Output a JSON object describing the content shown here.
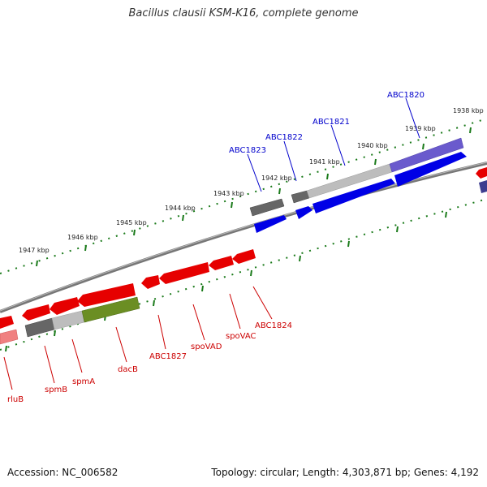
{
  "title": "Bacillus clausii KSM-K16, complete genome",
  "footer": {
    "accession": "Accession: NC_006582",
    "summary": "Topology: circular; Length: 4,303,871 bp; Genes: 4,192"
  },
  "colors": {
    "forward_gene": "#0000e6",
    "reverse_gene": "#e60000",
    "label_forward": "#0000cc",
    "label_reverse": "#cc0000",
    "tick": "#1a7a1a",
    "backbone": "#777777"
  },
  "kbp_labels": [
    "1938 kbp",
    "1939 kbp",
    "1940 kbp",
    "1941 kbp",
    "1942 kbp",
    "1943 kbp",
    "1944 kbp",
    "1945 kbp",
    "1946 kbp",
    "1947 kbp"
  ],
  "forward_gene_labels": [
    "ABC1820",
    "ABC1821",
    "ABC1822",
    "ABC1823"
  ],
  "reverse_gene_labels": [
    "rluB",
    "spmB",
    "spmA",
    "dacB",
    "ABC1827",
    "spoVAD",
    "spoVAC",
    "ABC1824"
  ]
}
